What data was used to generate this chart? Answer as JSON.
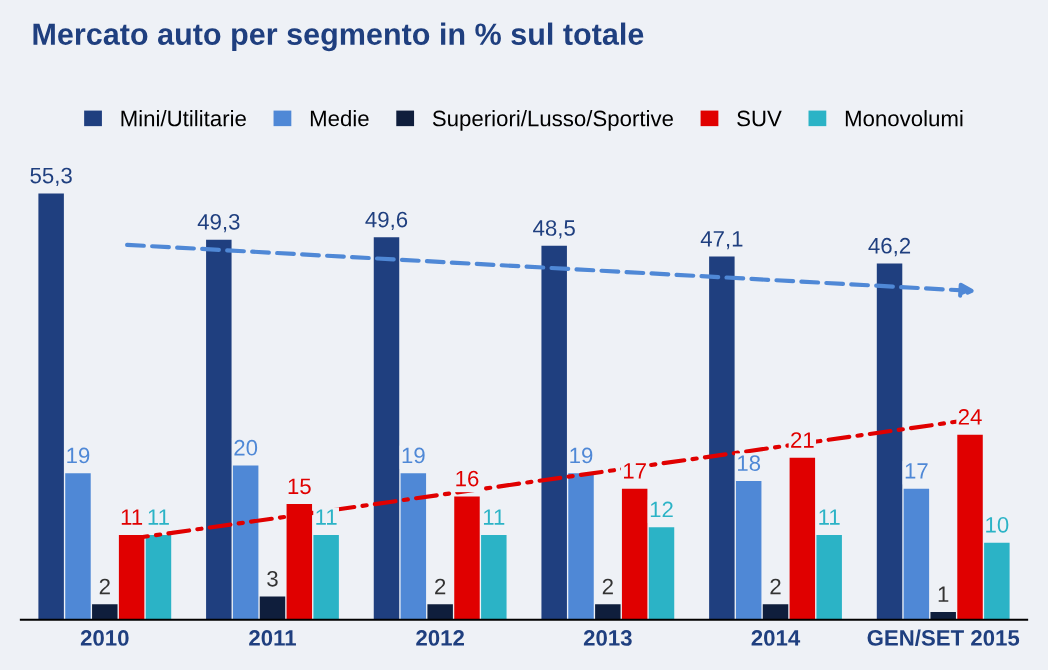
{
  "chart_data": {
    "type": "bar",
    "title": "Mercato auto per segmento in % sul totale",
    "categories": [
      "2010",
      "2011",
      "2012",
      "2013",
      "2014",
      "GEN/SET 2015"
    ],
    "series": [
      {
        "name": "Mini/Utilitarie",
        "color": "#1f3f7f",
        "values": [
          55.3,
          49.3,
          49.6,
          48.5,
          47.1,
          46.2
        ],
        "value_labels": [
          "55,3",
          "49,3",
          "49,6",
          "48,5",
          "47,1",
          "46,2"
        ]
      },
      {
        "name": "Medie",
        "color": "#4f88d6",
        "values": [
          19,
          20,
          19,
          19,
          18,
          17
        ],
        "value_labels": [
          "19",
          "20",
          "19",
          "19",
          "18",
          "17"
        ]
      },
      {
        "name": "Superiori/Lusso/Sportive",
        "color": "#0f1e3c",
        "values": [
          2,
          3,
          2,
          2,
          2,
          1
        ],
        "value_labels": [
          "2",
          "3",
          "2",
          "2",
          "2",
          "1"
        ]
      },
      {
        "name": "SUV",
        "color": "#e00000",
        "values": [
          11,
          15,
          16,
          17,
          21,
          24
        ],
        "value_labels": [
          "11",
          "15",
          "16",
          "17",
          "21",
          "24"
        ]
      },
      {
        "name": "Monovolumi",
        "color": "#2bb3c6",
        "values": [
          11,
          11,
          11,
          12,
          11,
          10
        ],
        "value_labels": [
          "11",
          "11",
          "11",
          "12",
          "11",
          "10"
        ]
      }
    ],
    "legend": "top",
    "grid": false
  }
}
